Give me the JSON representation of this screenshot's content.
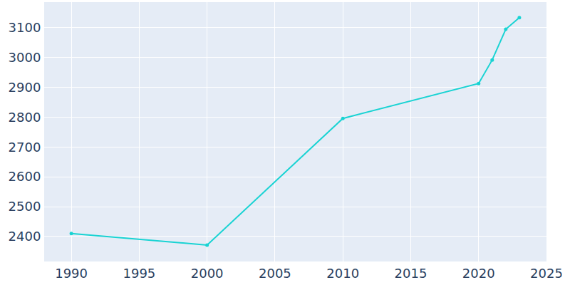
{
  "chart_data": {
    "type": "line",
    "x": [
      1990,
      2000,
      2010,
      2020,
      2021,
      2022,
      2023
    ],
    "values": [
      2410,
      2371,
      2796,
      2913,
      2992,
      3095,
      3134
    ],
    "color": "#19d3d3",
    "marker": "circle",
    "xlim": [
      1988,
      2025
    ],
    "ylim": [
      2316,
      3186
    ],
    "xticks": [
      1990,
      1995,
      2000,
      2005,
      2010,
      2015,
      2020,
      2025
    ],
    "yticks": [
      2400,
      2500,
      2600,
      2700,
      2800,
      2900,
      3000,
      3100
    ],
    "grid": true
  }
}
